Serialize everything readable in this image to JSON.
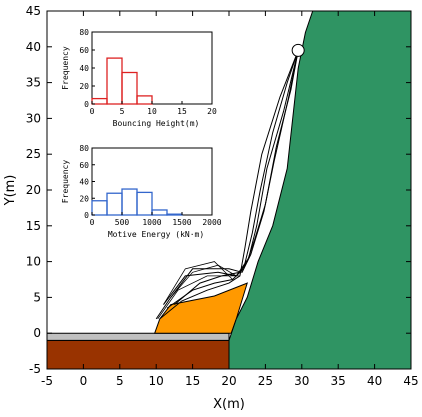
{
  "chart_data": [
    {
      "type": "line",
      "title": "",
      "xlabel": "X(m)",
      "ylabel": "Y(m)",
      "xlim": [
        -5,
        45
      ],
      "ylim": [
        -5,
        45
      ],
      "xticks": [
        "-5",
        "0",
        "5",
        "10",
        "15",
        "20",
        "25",
        "30",
        "35",
        "40",
        "45"
      ],
      "yticks": [
        "-5",
        "0",
        "5",
        "10",
        "15",
        "20",
        "25",
        "30",
        "35",
        "40",
        "45"
      ],
      "grid": false,
      "colors": {
        "slope": "#2f9463",
        "fill_orange": "#ff9900",
        "foundation": "#993300",
        "pavement": "#c0c0c0"
      },
      "regions": {
        "slope_polygon": [
          [
            20,
            -5
          ],
          [
            20,
            -1
          ],
          [
            21,
            2
          ],
          [
            22.5,
            5
          ],
          [
            24,
            10
          ],
          [
            26,
            15
          ],
          [
            28,
            23
          ],
          [
            29.5,
            37
          ],
          [
            30.5,
            42
          ],
          [
            31.5,
            45
          ],
          [
            45,
            45
          ],
          [
            45,
            -5
          ]
        ],
        "orange_fill": [
          [
            9.8,
            0
          ],
          [
            10.5,
            2
          ],
          [
            12,
            4
          ],
          [
            18,
            5.2
          ],
          [
            22.5,
            7
          ],
          [
            21,
            2
          ],
          [
            20.3,
            0
          ]
        ],
        "foundation_rect": [
          [
            -5,
            -5
          ],
          [
            20.3,
            -5
          ],
          [
            20.3,
            -1
          ],
          [
            -5,
            -1
          ]
        ],
        "pavement_strip": [
          [
            -5,
            -1
          ],
          [
            20,
            -1
          ],
          [
            20,
            0
          ],
          [
            -5,
            0
          ]
        ]
      },
      "start_point": [
        29.5,
        39.5
      ],
      "trajectories": [
        [
          [
            29.5,
            39.5
          ],
          [
            27,
            33
          ],
          [
            24.5,
            25
          ],
          [
            23,
            17
          ],
          [
            22.2,
            12
          ],
          [
            21.5,
            8
          ],
          [
            20,
            7
          ],
          [
            17,
            6
          ],
          [
            13.5,
            4.5
          ],
          [
            10.5,
            2
          ]
        ],
        [
          [
            29.5,
            39.5
          ],
          [
            28,
            35
          ],
          [
            26,
            28
          ],
          [
            24.3,
            20
          ],
          [
            23.2,
            14
          ],
          [
            22,
            9
          ],
          [
            20.5,
            7.5
          ],
          [
            18,
            7
          ],
          [
            15,
            6
          ],
          [
            11.5,
            3.5
          ]
        ],
        [
          [
            29.5,
            39.5
          ],
          [
            28.5,
            34
          ],
          [
            26.5,
            26
          ],
          [
            25,
            18
          ],
          [
            23.5,
            13
          ],
          [
            22.5,
            10
          ],
          [
            21.5,
            8.5
          ],
          [
            19,
            8
          ],
          [
            16,
            7
          ],
          [
            12.5,
            4
          ]
        ],
        [
          [
            29.5,
            39.5
          ],
          [
            27.5,
            31
          ],
          [
            25.2,
            23
          ],
          [
            23.8,
            15
          ],
          [
            22.7,
            10.5
          ],
          [
            21,
            8
          ],
          [
            18.5,
            8.5
          ],
          [
            14,
            8
          ],
          [
            11,
            4
          ]
        ],
        [
          [
            29.5,
            39.5
          ],
          [
            28.2,
            33
          ],
          [
            26.2,
            24
          ],
          [
            24.8,
            17
          ],
          [
            23,
            11
          ],
          [
            21.8,
            8.5
          ],
          [
            20,
            9
          ],
          [
            15,
            9
          ],
          [
            12,
            5
          ],
          [
            10,
            2
          ]
        ]
      ],
      "bounce_arcs": [
        [
          [
            20.5,
            7.5
          ],
          [
            18,
            10
          ],
          [
            14,
            9
          ],
          [
            11,
            4
          ]
        ],
        [
          [
            21,
            8
          ],
          [
            18.5,
            9.5
          ],
          [
            15,
            8.5
          ],
          [
            12,
            5
          ]
        ],
        [
          [
            21.5,
            8
          ],
          [
            17,
            8
          ],
          [
            13,
            6
          ],
          [
            10.2,
            2
          ]
        ]
      ],
      "insets": [
        {
          "type": "bar",
          "ylabel": "Frequency",
          "xlabel": "Bouncing Height(m)",
          "color": "#dd2222",
          "xlim": [
            0,
            20
          ],
          "ylim": [
            0,
            80
          ],
          "xticks": [
            "0",
            "5",
            "10",
            "15",
            "20"
          ],
          "yticks": [
            "0",
            "20",
            "40",
            "60",
            "80"
          ],
          "bins": [
            [
              0,
              2.5
            ],
            [
              2.5,
              5
            ],
            [
              5,
              7.5
            ],
            [
              7.5,
              10
            ],
            [
              10,
              12.5
            ]
          ],
          "values": [
            6,
            51,
            35,
            9,
            0
          ]
        },
        {
          "type": "bar",
          "ylabel": "Frequency",
          "xlabel": "Motive Energy (kN·m)",
          "color": "#3366cc",
          "xlim": [
            0,
            2000
          ],
          "ylim": [
            0,
            80
          ],
          "xticks": [
            "0",
            "500",
            "1000",
            "1500",
            "2000"
          ],
          "yticks": [
            "0",
            "20",
            "40",
            "60",
            "80"
          ],
          "bins": [
            [
              0,
              250
            ],
            [
              250,
              500
            ],
            [
              500,
              750
            ],
            [
              750,
              1000
            ],
            [
              1000,
              1250
            ],
            [
              1250,
              1500
            ]
          ],
          "values": [
            17,
            26,
            31,
            27,
            6,
            1
          ]
        }
      ]
    }
  ]
}
